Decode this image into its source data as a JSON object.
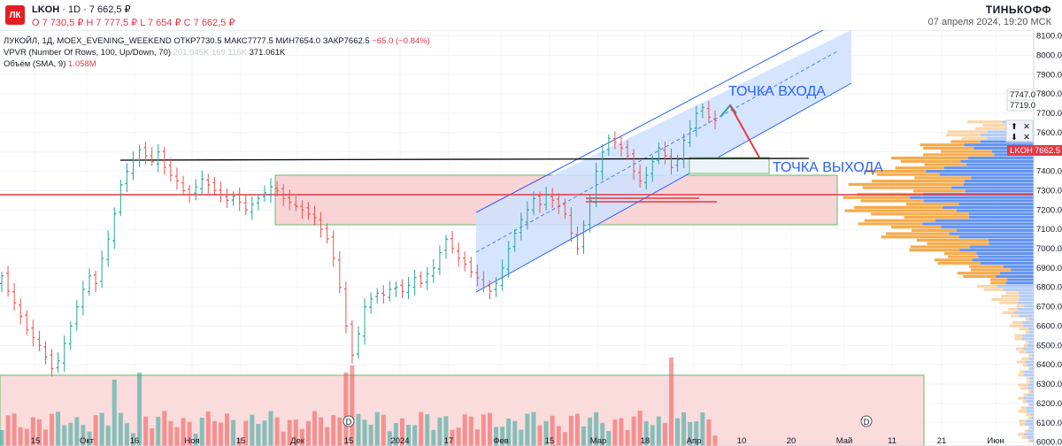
{
  "header": {
    "logo_text": "ЛК",
    "ticker": "LKOH",
    "timeframe": "1D",
    "price": "7 662,5 ₽",
    "ohlc": "O 7 730,5 ₽  H 7 777,5 ₽  L 7 654 ₽  C 7 662,5 ₽",
    "brand": "ТИНЬКОФФ",
    "datetime": "07 апреля 2024, 19:20 МСК"
  },
  "legend": {
    "line1_prefix": "ЛУКОЙЛ, 1Д, MOEX_EVENING_WEEKEND  ОТКР7730.5  МАКС7777.5  МИН7654.0  ЗАКР7662.5",
    "line1_change": "−65.0 (−0.84%)",
    "line2_prefix": "VPVR (Number Of Rows, 100, Up/Down, 70)",
    "line2_dim": "201.945K  169.116K",
    "line2_value": "371.061K",
    "line3_prefix": "Объём (SMA, 9)",
    "line3_value": "1.058M"
  },
  "annotations": {
    "entry": "ТОЧКА ВХОДА",
    "exit": "ТОЧКА ВЫХОДА",
    "dividend_marker": "D"
  },
  "price_labels": {
    "upper1": "7747.0",
    "upper2": "7719.0",
    "ticker_tag": "LKOH",
    "last": "7662.5"
  },
  "colors": {
    "up": "#26a69a",
    "down": "#ef5350",
    "channel_fill": "#cfe0ff",
    "channel_line": "#2962ff",
    "zone_fill": "#f9d4d6",
    "zone_border": "#66bb6a",
    "level_red": "#e53945",
    "level_black": "#000000",
    "vp_up": "#f5a742",
    "vp_down": "#5b8def"
  },
  "chart_data": {
    "type": "candlestick",
    "y_axis_ticks": [
      8100,
      8000,
      7900,
      7800,
      7700,
      7600,
      7500,
      7400,
      7300,
      7200,
      7100,
      7000,
      6900,
      6800,
      6700,
      6600,
      6500,
      6400,
      6300,
      6200,
      6100,
      6000
    ],
    "x_axis_ticks": [
      "15",
      "Окт",
      "16",
      "Ноя",
      "15",
      "Дек",
      "15",
      "2024",
      "17",
      "Фев",
      "15",
      "Мар",
      "18",
      "Апр",
      "10",
      "20",
      "Май",
      "11",
      "21",
      "Июн"
    ],
    "ylim": [
      5980,
      8130
    ],
    "last_price": 7662.5,
    "levels": {
      "black_resistance": 7565,
      "red_support": 7243
    },
    "channel": {
      "start": {
        "date": "2024-01-24",
        "lower": 6720,
        "upper": 7140
      },
      "end": {
        "date": "2024-04-28",
        "lower": 7820,
        "upper": 8100
      }
    },
    "closes": [
      6860,
      6780,
      6720,
      6650,
      6580,
      6540,
      6500,
      6440,
      6380,
      6420,
      6510,
      6600,
      6700,
      6790,
      6860,
      6820,
      6950,
      7050,
      7180,
      7330,
      7400,
      7460,
      7510,
      7480,
      7450,
      7500,
      7420,
      7380,
      7350,
      7300,
      7280,
      7320,
      7360,
      7330,
      7300,
      7280,
      7250,
      7270,
      7240,
      7200,
      7230,
      7260,
      7290,
      7320,
      7300,
      7260,
      7240,
      7220,
      7200,
      7180,
      7160,
      7100,
      7050,
      6950,
      6800,
      6600,
      6450,
      6560,
      6700,
      6740,
      6770,
      6760,
      6790,
      6800,
      6780,
      6810,
      6850,
      6820,
      6870,
      6900,
      6980,
      7050,
      7000,
      6950,
      6920,
      6880,
      6850,
      6800,
      6780,
      6820,
      6900,
      7000,
      7080,
      7150,
      7200,
      7260,
      7230,
      7280,
      7250,
      7220,
      7180,
      7080,
      7000,
      7120,
      7250,
      7400,
      7500,
      7570,
      7550,
      7520,
      7480,
      7400,
      7350,
      7380,
      7450,
      7520,
      7480,
      7420,
      7460,
      7560,
      7620,
      7700,
      7730,
      7680,
      7662
    ]
  }
}
